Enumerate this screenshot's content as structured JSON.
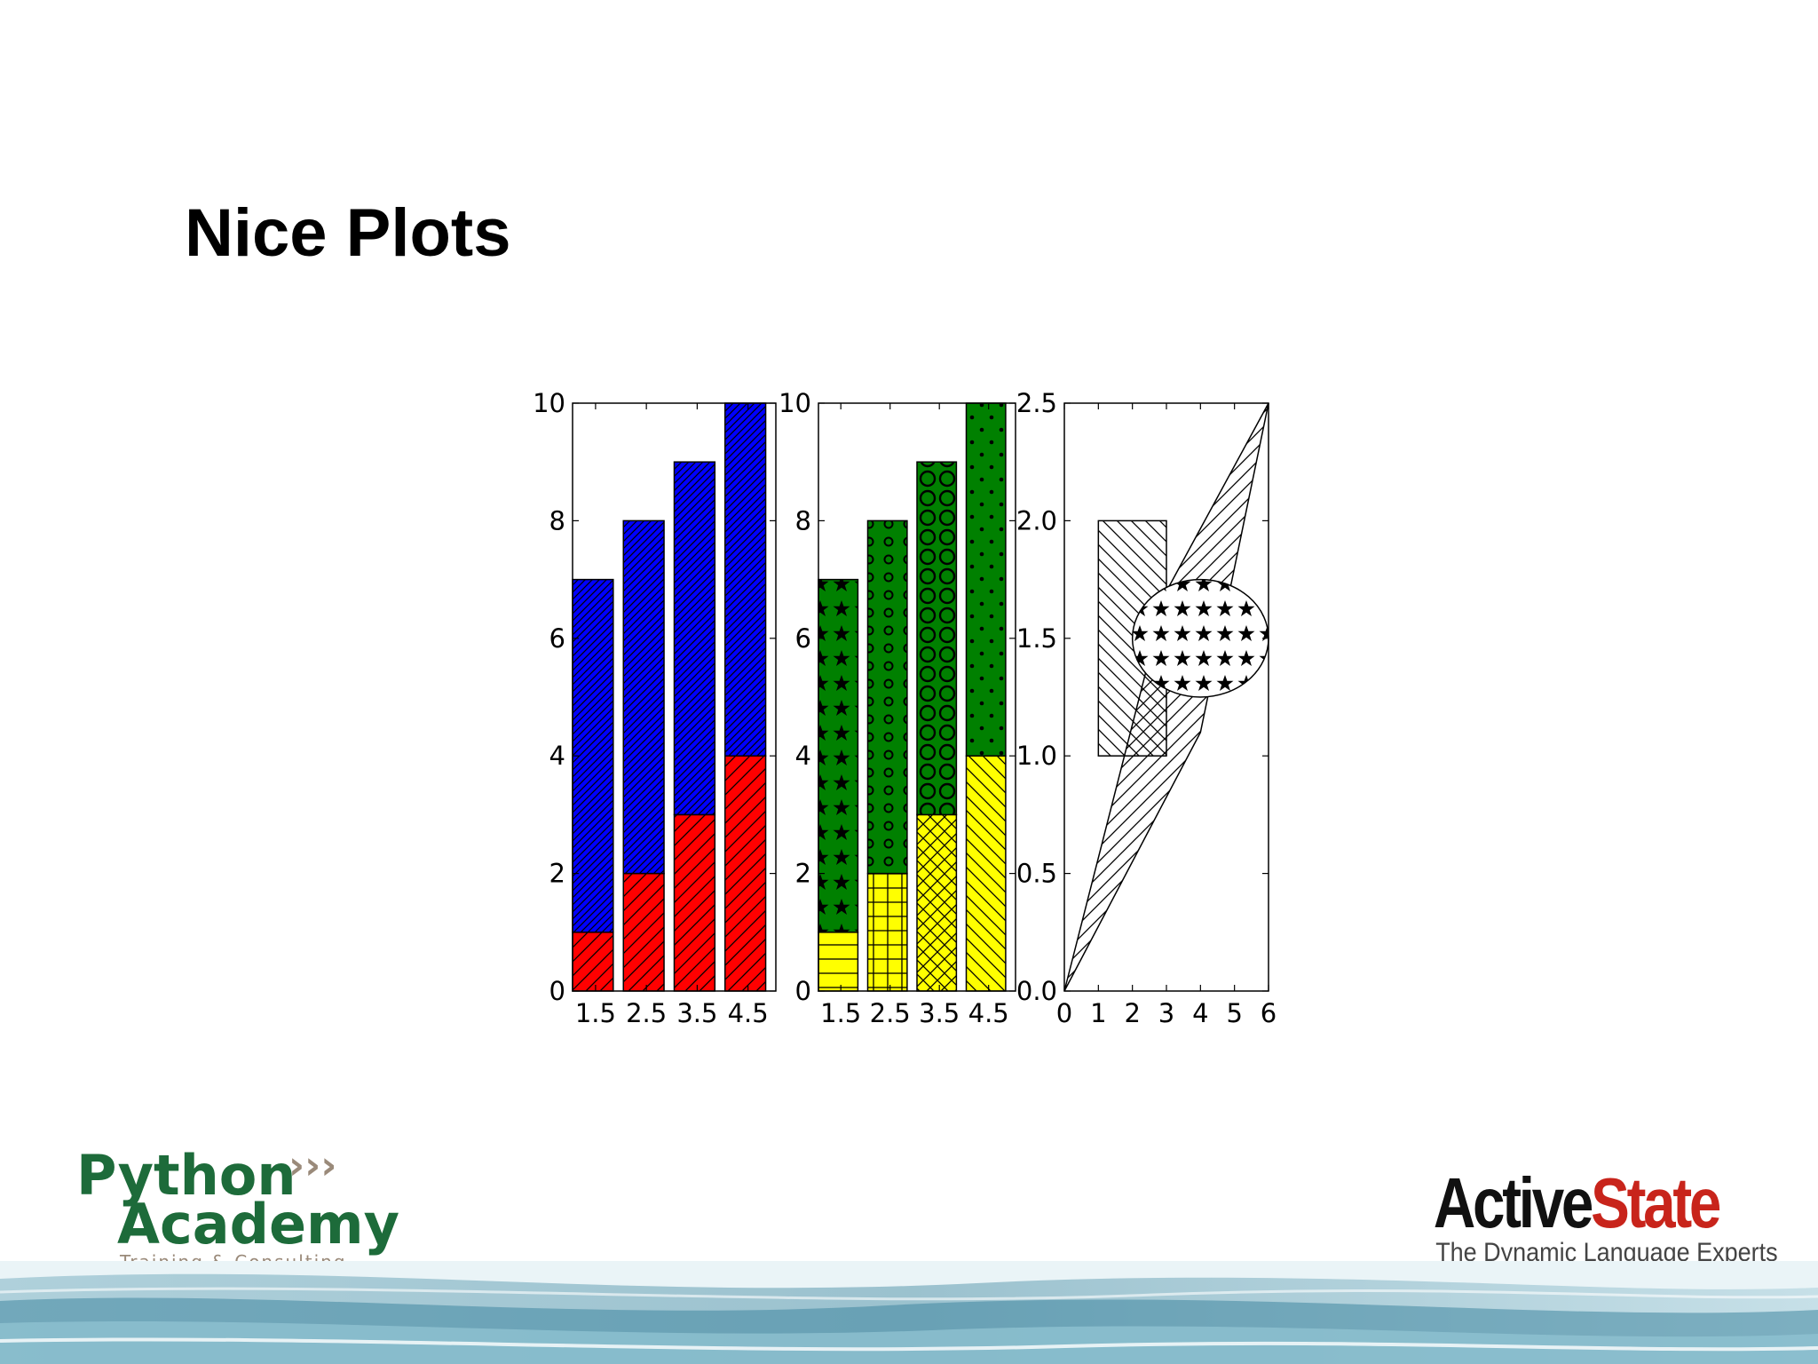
{
  "slide": {
    "title": "Nice Plots",
    "left_logo": {
      "word1": "Python",
      "word2": "Academy",
      "tagline": "Training & Consulting",
      "color": "#1d6b3a",
      "chevron_color": "#9a8a7a"
    },
    "right_logo": {
      "word1": "Active",
      "word2": "State",
      "tagline": "The Dynamic Language Experts",
      "color1": "#111111",
      "color2": "#c8241b"
    }
  },
  "chart_data": [
    {
      "type": "bar",
      "stacked": true,
      "x": [
        1.5,
        2.5,
        3.5,
        4.5
      ],
      "xticks": [
        "1.5",
        "2.5",
        "3.5",
        "4.5"
      ],
      "ylim": [
        0,
        10
      ],
      "yticks": [
        "0",
        "2",
        "4",
        "6",
        "8",
        "10"
      ],
      "series": [
        {
          "values": [
            1,
            2,
            3,
            4
          ],
          "color": "#ff0000",
          "hatch": [
            "/",
            "/",
            "/",
            "/"
          ]
        },
        {
          "values": [
            6,
            6,
            6,
            6
          ],
          "color": "#0000ff",
          "hatch": [
            "//",
            "//",
            "//",
            "//"
          ]
        }
      ]
    },
    {
      "type": "bar",
      "stacked": true,
      "x": [
        1.5,
        2.5,
        3.5,
        4.5
      ],
      "xticks": [
        "1.5",
        "2.5",
        "3.5",
        "4.5"
      ],
      "ylim": [
        0,
        10
      ],
      "yticks": [
        "0",
        "2",
        "4",
        "6",
        "8",
        "10"
      ],
      "series": [
        {
          "values": [
            1,
            2,
            3,
            4
          ],
          "color": "#ffff00",
          "hatch": [
            "-",
            "+",
            "x",
            "\\"
          ]
        },
        {
          "values": [
            6,
            6,
            6,
            6
          ],
          "color": "#008000",
          "hatch": [
            "*",
            "o",
            "O",
            "."
          ]
        }
      ]
    },
    {
      "type": "patches",
      "xlim": [
        0,
        6
      ],
      "ylim": [
        0,
        2.5
      ],
      "xticks": [
        "0",
        "1",
        "2",
        "3",
        "4",
        "5",
        "6"
      ],
      "yticks": [
        "0.0",
        "0.5",
        "1.0",
        "1.5",
        "2.0",
        "2.5"
      ],
      "shapes": [
        {
          "kind": "polygon",
          "points": [
            [
              0,
              0
            ],
            [
              4,
              1.1
            ],
            [
              6,
              2.5
            ],
            [
              3,
              1.7
            ]
          ],
          "hatch": "/"
        },
        {
          "kind": "rectangle",
          "x": [
            1,
            3
          ],
          "y": [
            1,
            2
          ],
          "hatch": "\\"
        },
        {
          "kind": "ellipse",
          "center": [
            4,
            1.5
          ],
          "rx": 2,
          "ry": 0.25,
          "hatch": "*"
        }
      ]
    }
  ]
}
